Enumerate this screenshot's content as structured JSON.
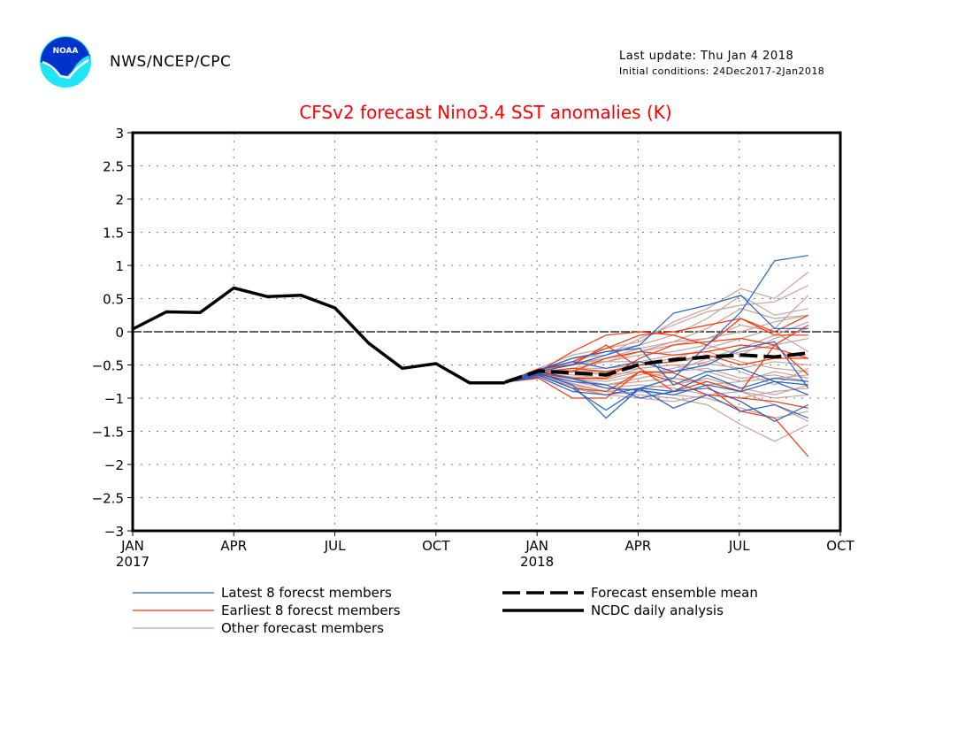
{
  "header": {
    "org": "NWS/NCEP/CPC",
    "logo_text": "NOAA",
    "last_update": "Last update: Thu Jan  4 2018",
    "initial_conditions": "Initial conditions: 24Dec2017-2Jan2018"
  },
  "colors": {
    "title": "#ff0000",
    "latest": "#1f5fcf",
    "earliest": "#ff3300",
    "other": "#c9a09a",
    "black": "#000000"
  },
  "chart_data": {
    "type": "line",
    "title": "CFSv2 forecast Nino3.4 SST anomalies (K)",
    "xlabel": "",
    "ylabel": "",
    "ylim": [
      -3,
      3
    ],
    "yticks": [
      -3,
      -2.5,
      -2,
      -1.5,
      -1,
      -0.5,
      0,
      0.5,
      1,
      1.5,
      2,
      2.5,
      3
    ],
    "ytick_labels": [
      "−3",
      "−2.5",
      "−2",
      "−1.5",
      "−1",
      "−0.5",
      "0",
      "0.5",
      "1",
      "1.5",
      "2",
      "2.5",
      "3"
    ],
    "xlim_months": [
      0,
      21
    ],
    "xticks": [
      {
        "m": 0,
        "label": "JAN",
        "year": "2017"
      },
      {
        "m": 3,
        "label": "APR",
        "year": ""
      },
      {
        "m": 6,
        "label": "JUL",
        "year": ""
      },
      {
        "m": 9,
        "label": "OCT",
        "year": ""
      },
      {
        "m": 12,
        "label": "JAN",
        "year": "2018"
      },
      {
        "m": 15,
        "label": "APR",
        "year": ""
      },
      {
        "m": 18,
        "label": "JUL",
        "year": ""
      },
      {
        "m": 21,
        "label": "OCT",
        "year": ""
      }
    ],
    "grid": true,
    "zero_line": true,
    "legend": [
      {
        "key": "latest",
        "label": "Latest 8 forecst members",
        "style": "thin",
        "color": "#1f5fcf"
      },
      {
        "key": "earliest",
        "label": "Earliest 8 forecst members",
        "style": "thin",
        "color": "#ff3300"
      },
      {
        "key": "other",
        "label": "Other forecast members",
        "style": "thin",
        "color": "#c9a09a"
      },
      {
        "key": "mean",
        "label": "Forecast ensemble mean",
        "style": "dashed",
        "color": "#000000"
      },
      {
        "key": "ncdc",
        "label": "NCDC daily analysis",
        "style": "solid",
        "color": "#000000"
      }
    ],
    "legend_position": "bottom",
    "ncdc": {
      "x_months": [
        0,
        1,
        2,
        3,
        4,
        5,
        6,
        7,
        8,
        9,
        10,
        11.05
      ],
      "values": [
        0.04,
        0.3,
        0.29,
        0.66,
        0.53,
        0.55,
        0.36,
        -0.17,
        -0.55,
        -0.48,
        -0.77,
        -0.77
      ]
    },
    "forecast_x_months": [
      11.05,
      12.05,
      13.05,
      14.05,
      15.05,
      16.05,
      17.05,
      18.05,
      19.05,
      20.05
    ],
    "ensemble_mean": [
      -0.76,
      -0.59,
      -0.62,
      -0.65,
      -0.49,
      -0.42,
      -0.38,
      -0.35,
      -0.38,
      -0.32
    ],
    "members": {
      "latest": [
        [
          -0.76,
          -0.62,
          -0.8,
          -1.3,
          -0.85,
          -0.7,
          -0.2,
          0.3,
          1.07,
          1.15
        ],
        [
          -0.76,
          -0.6,
          -0.5,
          -0.35,
          -0.2,
          0.28,
          0.4,
          0.55,
          0.05,
          0.05
        ],
        [
          -0.76,
          -0.65,
          -0.85,
          -1.18,
          -0.85,
          -0.9,
          -0.85,
          -1.05,
          -1.35,
          -1.1
        ],
        [
          -0.76,
          -0.58,
          -0.4,
          -0.3,
          -0.25,
          -0.8,
          -0.6,
          -0.55,
          -0.75,
          -0.95
        ],
        [
          -0.76,
          -0.68,
          -0.9,
          -0.95,
          -0.85,
          -1.15,
          -0.95,
          -1.2,
          -1.1,
          -1.3
        ],
        [
          -0.76,
          -0.6,
          -0.7,
          -0.85,
          -0.88,
          -0.95,
          -0.8,
          -0.9,
          -0.75,
          -0.8
        ],
        [
          -0.76,
          -0.64,
          -0.75,
          -0.8,
          -1.0,
          -0.9,
          -0.65,
          -0.85,
          -0.7,
          -0.75
        ],
        [
          -0.76,
          -0.57,
          -0.45,
          -0.55,
          -0.45,
          -0.6,
          -0.5,
          -0.25,
          -0.15,
          -0.85
        ]
      ],
      "earliest": [
        [
          -0.76,
          -0.58,
          -0.45,
          -0.25,
          -0.05,
          0.0,
          0.1,
          0.2,
          0.0,
          0.25
        ],
        [
          -0.76,
          -0.7,
          -1.0,
          -1.0,
          -0.6,
          -0.62,
          -0.82,
          -1.2,
          -1.3,
          -1.88
        ],
        [
          -0.76,
          -0.62,
          -0.55,
          -0.6,
          -0.5,
          -0.45,
          -0.35,
          -0.5,
          -0.4,
          -0.4
        ],
        [
          -0.76,
          -0.66,
          -0.85,
          -0.9,
          -0.6,
          -0.75,
          -0.95,
          -1.0,
          -1.05,
          -1.15
        ],
        [
          -0.76,
          -0.6,
          -0.3,
          -0.05,
          0.0,
          -0.05,
          -0.2,
          0.2,
          -0.05,
          -0.05
        ],
        [
          -0.76,
          -0.63,
          -0.7,
          -0.7,
          -0.4,
          -0.2,
          -0.15,
          -0.1,
          -0.2,
          -0.65
        ],
        [
          -0.76,
          -0.56,
          -0.5,
          -0.2,
          -0.55,
          -0.9,
          -0.75,
          -0.9,
          -0.2,
          0.1
        ],
        [
          -0.76,
          -0.65,
          -0.6,
          -0.4,
          -0.3,
          -0.35,
          -0.3,
          -0.2,
          -0.25,
          -0.4
        ]
      ],
      "other": [
        [
          -0.76,
          -0.55,
          -0.35,
          -0.25,
          -0.15,
          0.15,
          0.35,
          0.65,
          0.5,
          0.9
        ],
        [
          -0.76,
          -0.57,
          -0.4,
          -0.35,
          -0.1,
          0.1,
          0.3,
          0.4,
          0.45,
          0.7
        ],
        [
          -0.76,
          -0.6,
          -0.55,
          -0.45,
          -0.3,
          -0.15,
          0.05,
          0.35,
          0.2,
          0.25
        ],
        [
          -0.76,
          -0.62,
          -0.7,
          -0.8,
          -0.7,
          -0.6,
          -0.4,
          -0.6,
          -0.8,
          -0.55
        ],
        [
          -0.76,
          -0.64,
          -0.8,
          -0.9,
          -0.95,
          -1.0,
          -1.1,
          -1.4,
          -1.65,
          -1.4
        ],
        [
          -0.76,
          -0.59,
          -0.5,
          -0.4,
          -0.3,
          -0.2,
          -0.1,
          0.0,
          0.15,
          0.25
        ],
        [
          -0.76,
          -0.61,
          -0.65,
          -0.7,
          -0.55,
          -0.5,
          -0.6,
          -0.75,
          -0.7,
          -0.65
        ],
        [
          -0.76,
          -0.63,
          -0.75,
          -0.85,
          -0.8,
          -0.85,
          -0.95,
          -1.0,
          -0.9,
          -0.85
        ],
        [
          -0.76,
          -0.58,
          -0.45,
          -0.45,
          -0.35,
          -0.3,
          -0.2,
          -0.35,
          -0.1,
          0.05
        ],
        [
          -0.76,
          -0.6,
          -0.6,
          -0.65,
          -0.6,
          -0.7,
          -0.8,
          -0.75,
          -0.6,
          -0.7
        ],
        [
          -0.76,
          -0.65,
          -0.85,
          -0.95,
          -0.9,
          -0.95,
          -1.0,
          -1.15,
          -1.3,
          -1.2
        ],
        [
          -0.76,
          -0.57,
          -0.45,
          -0.3,
          -0.2,
          -0.05,
          0.2,
          0.55,
          0.25,
          0.35
        ],
        [
          -0.76,
          -0.62,
          -0.7,
          -0.75,
          -0.65,
          -0.55,
          -0.45,
          -0.3,
          -0.2,
          -0.1
        ],
        [
          -0.76,
          -0.64,
          -0.78,
          -0.9,
          -0.85,
          -0.8,
          -0.7,
          -0.85,
          -0.95,
          -0.8
        ],
        [
          -0.76,
          -0.6,
          -0.55,
          -0.55,
          -0.5,
          -0.45,
          -0.4,
          -0.25,
          -0.05,
          0.15
        ],
        [
          -0.76,
          -0.59,
          -0.5,
          -0.45,
          -0.45,
          -0.35,
          -0.3,
          -0.45,
          -0.55,
          -0.6
        ],
        [
          -0.76,
          -0.66,
          -0.82,
          -0.95,
          -1.0,
          -1.05,
          -0.95,
          -0.9,
          -1.0,
          -0.95
        ],
        [
          -0.76,
          -0.61,
          -0.6,
          -0.62,
          -0.5,
          -0.4,
          -0.25,
          -0.1,
          0.05,
          0.55
        ],
        [
          -0.76,
          -0.63,
          -0.72,
          -0.8,
          -0.75,
          -0.7,
          -0.75,
          -0.9,
          -1.1,
          -1.35
        ],
        [
          -0.76,
          -0.58,
          -0.48,
          -0.4,
          -0.25,
          -0.15,
          -0.1,
          0.1,
          0.0,
          -0.3
        ],
        [
          -0.76,
          -0.62,
          -0.68,
          -0.72,
          -0.6,
          -0.6,
          -0.55,
          -0.7,
          -0.65,
          -0.75
        ],
        [
          -0.76,
          -0.6,
          -0.58,
          -0.6,
          -0.55,
          -0.5,
          -0.48,
          -0.55,
          -0.45,
          -0.5
        ]
      ]
    }
  }
}
